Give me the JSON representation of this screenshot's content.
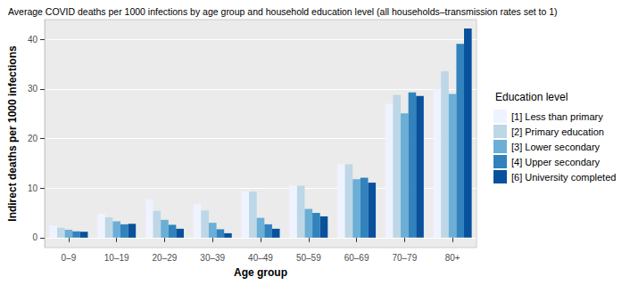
{
  "chart_data": {
    "type": "bar",
    "title": "Average COVID deaths per 1000 infections by age group and household education level (all households–transmission rates set to 1)",
    "x_label": "Age group",
    "y_label": "Indirect deaths per 1000 infections",
    "legend_title": "Education level",
    "categories": [
      "0–9",
      "10–19",
      "20–29",
      "30–39",
      "40–49",
      "50–59",
      "60–69",
      "70–79",
      "80+"
    ],
    "series": [
      {
        "name": "[1] Less than primary",
        "color": "#EFF3FF",
        "values": [
          2.5,
          4.8,
          7.8,
          6.8,
          9.4,
          10.5,
          14.8,
          27.0,
          30.0
        ]
      },
      {
        "name": "[2] Primary education",
        "color": "#BDD7E7",
        "values": [
          2.0,
          4.1,
          5.4,
          5.5,
          9.3,
          10.5,
          14.8,
          28.8,
          33.6
        ]
      },
      {
        "name": "[3] Lower secondary",
        "color": "#6BAED6",
        "values": [
          1.6,
          3.3,
          3.6,
          3.0,
          4.0,
          5.8,
          11.8,
          25.1,
          29.0
        ]
      },
      {
        "name": "[4] Upper secondary",
        "color": "#3182BD",
        "values": [
          1.3,
          2.7,
          2.6,
          1.7,
          2.7,
          5.0,
          12.1,
          29.3,
          39.1
        ]
      },
      {
        "name": "[6] University completed",
        "color": "#08519C",
        "values": [
          1.2,
          2.8,
          1.8,
          0.9,
          1.8,
          4.3,
          11.1,
          28.6,
          42.2
        ]
      }
    ],
    "ylim": [
      -2,
      44
    ],
    "yticks": [
      0,
      10,
      20,
      30,
      40
    ],
    "grid": true,
    "legend": "right"
  }
}
